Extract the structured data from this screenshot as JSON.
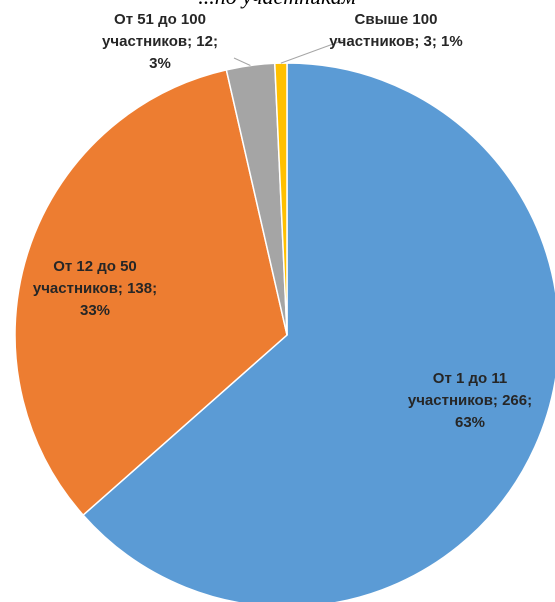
{
  "chart_data": {
    "type": "pie",
    "title_fragment": "...по участникам",
    "start_angle_deg": 0,
    "direction": "clockwise",
    "legend": "none",
    "slices": [
      {
        "label": "От 1 до 11 участников",
        "value": 266,
        "percent": "63%",
        "color": "#5B9BD5",
        "label_lines": [
          "От 1 до 11",
          "участников; 266;",
          "63%"
        ]
      },
      {
        "label": "От 12 до 50 участников",
        "value": 138,
        "percent": "33%",
        "color": "#ED7D31",
        "label_lines": [
          "От 12 до 50",
          "участников; 138;",
          "33%"
        ]
      },
      {
        "label": "От 51 до 100 участников",
        "value": 12,
        "percent": "3%",
        "color": "#A5A5A5",
        "label_lines": [
          "От 51 до 100",
          "участников; 12;",
          "3%"
        ]
      },
      {
        "label": "Свыше 100 участников",
        "value": 3,
        "percent": "1%",
        "color": "#FFC000",
        "label_lines": [
          "Свыше 100",
          "участников; 3; 1%"
        ]
      }
    ]
  }
}
